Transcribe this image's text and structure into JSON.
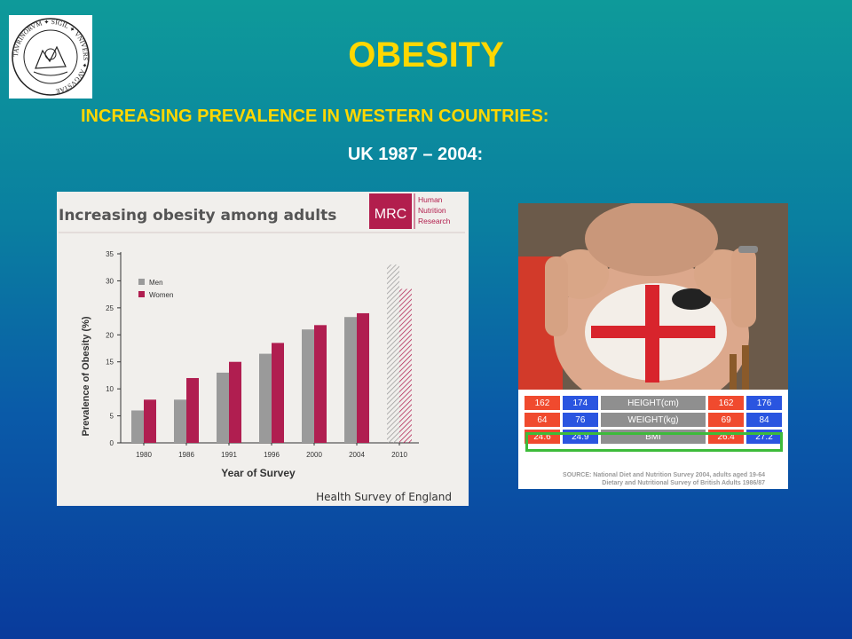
{
  "slide": {
    "title": "OBESITY",
    "subtitle": "INCREASING PREVALENCE IN WESTERN COUNTRIES:",
    "subtitle2": "UK 1987 – 2004:"
  },
  "seal": {
    "text": "TAVRINORVM ✦ SIGIL ✦ VNIVERS ✦ AVGVSTAE"
  },
  "chart_data": {
    "type": "bar",
    "title": "Increasing obesity among adults",
    "logo_text": "MRC",
    "logo_caption": [
      "Human",
      "Nutrition",
      "Research"
    ],
    "xlabel": "Year of Survey",
    "ylabel": "Prevalence of Obesity (%)",
    "ylim": [
      0,
      35
    ],
    "yticks": [
      0,
      5,
      10,
      15,
      20,
      25,
      30,
      35
    ],
    "categories": [
      "1980",
      "1986",
      "1991",
      "1996",
      "2000",
      "2004",
      "2010"
    ],
    "series": [
      {
        "name": "Men",
        "color": "#9a9a9a",
        "values": [
          6,
          8,
          13,
          16.5,
          21,
          23.3,
          33
        ]
      },
      {
        "name": "Women",
        "color": "#b01e50",
        "values": [
          8,
          12,
          15,
          18.5,
          21.8,
          24,
          28.5
        ]
      }
    ],
    "projected_categories": [
      "2010"
    ],
    "legend_position": "top-left",
    "source": "Health Survey of England"
  },
  "bmi_table": {
    "rows": [
      {
        "cells": [
          "162",
          "174",
          "HEIGHT(cm)",
          "162",
          "176"
        ]
      },
      {
        "cells": [
          "64",
          "76",
          "WEIGHT(kg)",
          "69",
          "84"
        ]
      },
      {
        "cells": [
          "24.6",
          "24.9",
          "BMI",
          "26.4",
          "27.2"
        ]
      }
    ],
    "source_line1": "SOURCE: National Diet and Nutrition Survey 2004, adults aged 19-64",
    "source_line2": "Dietary and Nutritional Survey of British Adults 1986/87"
  },
  "colors": {
    "title": "#ffd700",
    "women": "#b01e50",
    "men": "#9a9a9a",
    "table_red": "#f04a2e",
    "table_blue": "#2a55e0",
    "highlight": "#3dbb3a"
  }
}
